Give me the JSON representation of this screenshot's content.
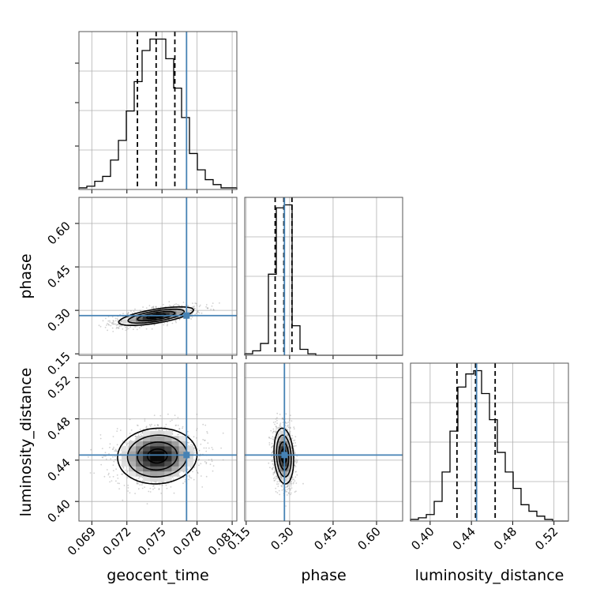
{
  "chart_data": {
    "type": "corner",
    "parameters": [
      {
        "key": "geocent_time",
        "label": "geocent_time",
        "range": [
          0.0679,
          0.0814
        ],
        "ticks": [
          "0.069",
          "0.072",
          "0.075",
          "0.078",
          "0.081"
        ],
        "tick_values": [
          0.069,
          0.072,
          0.075,
          0.078,
          0.081
        ],
        "truth": 0.0771,
        "quantiles": [
          0.0729,
          0.0745,
          0.0761
        ]
      },
      {
        "key": "phase",
        "label": "phase",
        "range": [
          0.145,
          0.69
        ],
        "ticks": [
          "0.15",
          "0.30",
          "0.45",
          "0.60"
        ],
        "tick_values": [
          0.15,
          0.3,
          0.45,
          0.6
        ],
        "truth": 0.282,
        "quantiles": [
          0.25,
          0.28,
          0.308
        ]
      },
      {
        "key": "luminosity_distance",
        "label": "luminosity_distance",
        "range": [
          0.381,
          0.534
        ],
        "ticks": [
          "0.40",
          "0.44",
          "0.48",
          "0.52"
        ],
        "tick_values": [
          0.4,
          0.44,
          0.48,
          0.52
        ],
        "truth": 0.445,
        "quantiles": [
          0.426,
          0.444,
          0.463
        ]
      }
    ],
    "histograms": [
      {
        "param": "geocent_time",
        "bin_range": [
          0.0679,
          0.0814
        ],
        "counts": [
          1,
          2,
          5,
          8,
          18,
          30,
          48,
          66,
          85,
          92,
          92,
          80,
          62,
          44,
          22,
          12,
          6,
          3,
          1,
          1
        ]
      },
      {
        "param": "phase",
        "bin_range": [
          0.145,
          0.69
        ],
        "counts": [
          1,
          3,
          8,
          55,
          100,
          102,
          20,
          4,
          1,
          0,
          0,
          0,
          0,
          0,
          0,
          0,
          0,
          0,
          0,
          0
        ]
      },
      {
        "param": "luminosity_distance",
        "bin_range": [
          0.381,
          0.534
        ],
        "counts": [
          1,
          2,
          4,
          12,
          30,
          55,
          82,
          90,
          92,
          78,
          62,
          42,
          30,
          20,
          10,
          6,
          3,
          1,
          0,
          0
        ]
      }
    ],
    "joint": [
      {
        "x": "geocent_time",
        "y": "phase",
        "mean": [
          0.0745,
          0.28
        ],
        "sd": [
          0.0016,
          0.016
        ],
        "corr": 0.65
      },
      {
        "x": "geocent_time",
        "y": "luminosity_distance",
        "mean": [
          0.0746,
          0.444
        ],
        "sd": [
          0.0017,
          0.0135
        ],
        "corr": 0.05
      },
      {
        "x": "phase",
        "y": "luminosity_distance",
        "mean": [
          0.28,
          0.444
        ],
        "sd": [
          0.017,
          0.0135
        ],
        "corr": -0.15
      }
    ],
    "colors": {
      "truth": "#4682b4",
      "hist": "#000000",
      "grid": "#b0b0b0",
      "scatter": "#9a9a9a"
    },
    "grid": true
  }
}
